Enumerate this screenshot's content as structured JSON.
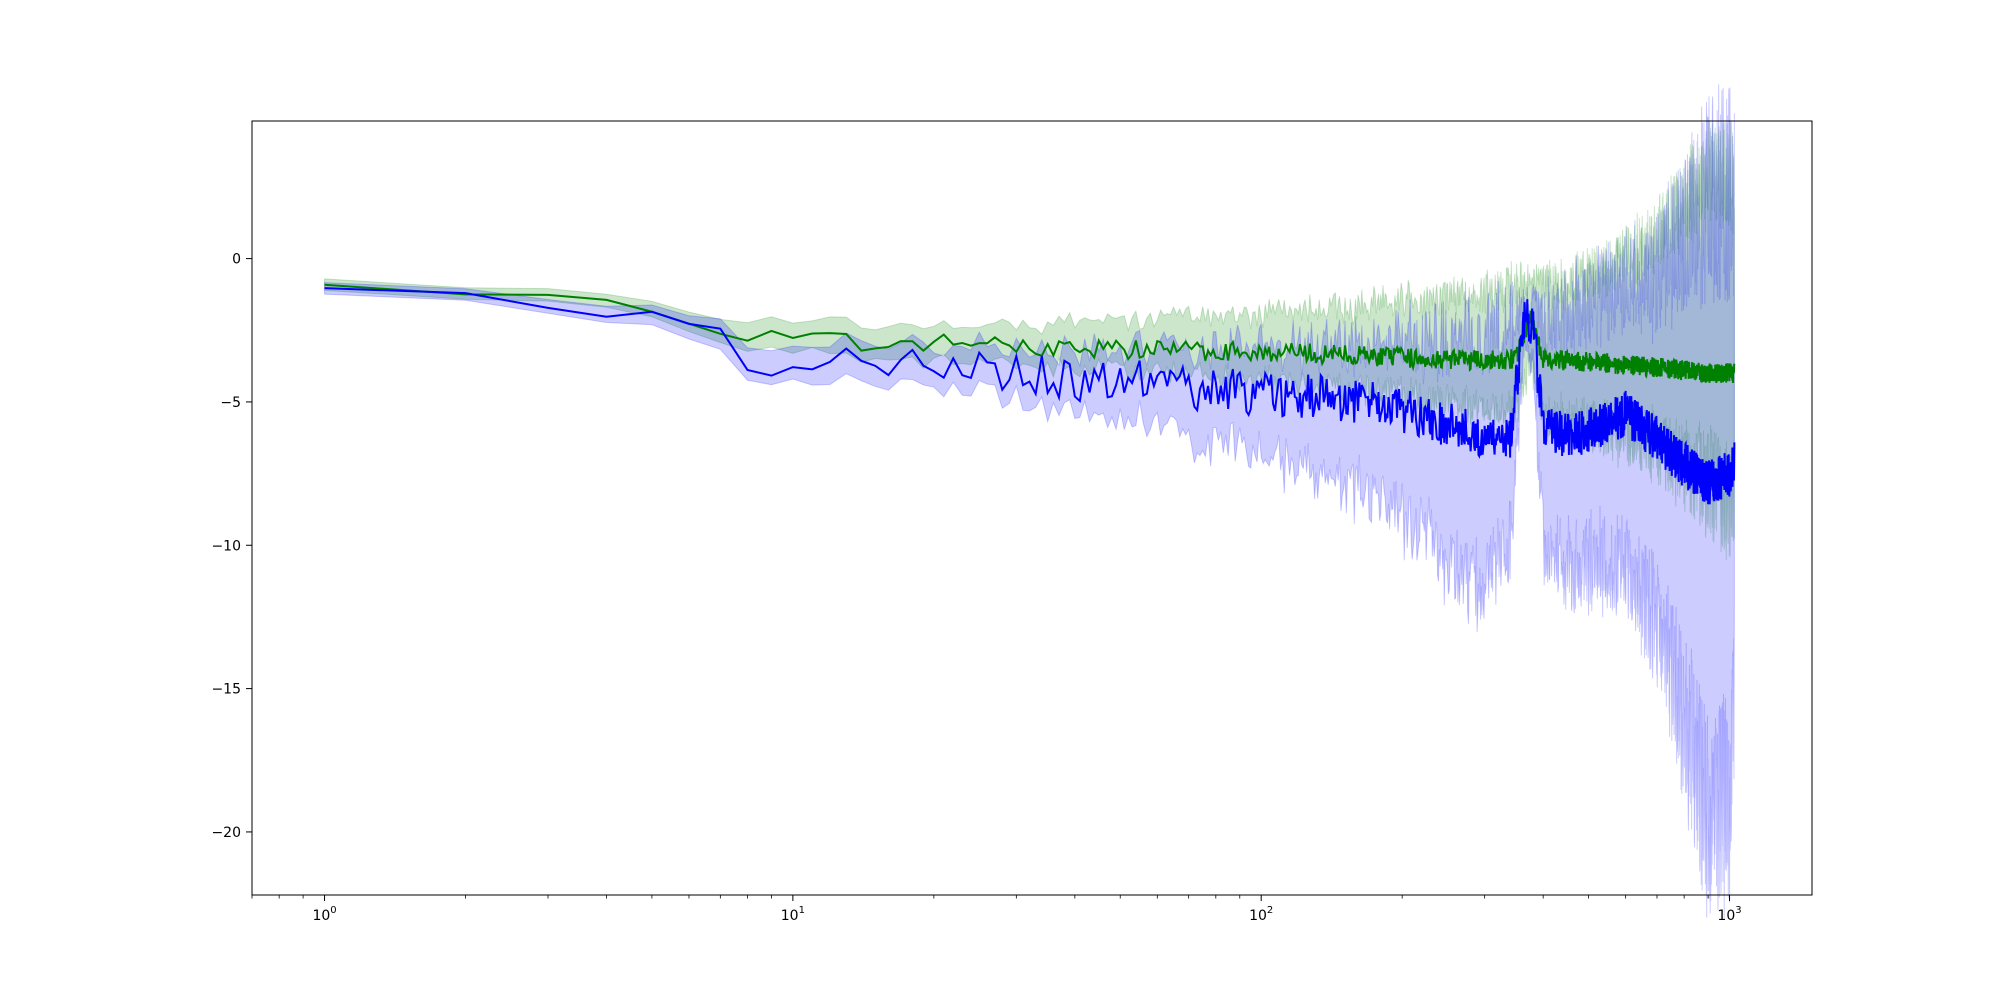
{
  "chart_data": {
    "type": "line",
    "title": "",
    "xlabel": "",
    "ylabel": "",
    "xscale": "log",
    "xlim": [
      0.7,
      1500
    ],
    "ylim": [
      -22.2,
      4.8
    ],
    "grid": false,
    "legend": "none",
    "x_ticks": [
      {
        "base": "10",
        "exp": "0",
        "value": 1
      },
      {
        "base": "10",
        "exp": "1",
        "value": 10
      },
      {
        "base": "10",
        "exp": "2",
        "value": 100
      },
      {
        "base": "10",
        "exp": "3",
        "value": 1000
      }
    ],
    "y_ticks": [
      {
        "label": "0",
        "value": 0
      },
      {
        "label": "−5",
        "value": -5
      },
      {
        "label": "−10",
        "value": -10
      },
      {
        "label": "−15",
        "value": -15
      },
      {
        "label": "−20",
        "value": -20
      }
    ],
    "series": [
      {
        "color": "#008000",
        "band_color": "#008000",
        "x": [
          1,
          2,
          3,
          4,
          5,
          6,
          7,
          8,
          10,
          12,
          15,
          20,
          25,
          30,
          40,
          50,
          70,
          100,
          150,
          200,
          250,
          300,
          350,
          375,
          400,
          500,
          600,
          700,
          800,
          900,
          1000,
          1024
        ],
        "y": [
          -0.9,
          -1.15,
          -1.35,
          -1.55,
          -1.75,
          -2.1,
          -2.5,
          -2.7,
          -2.85,
          -2.9,
          -2.95,
          -2.95,
          -3.0,
          -3.05,
          -3.1,
          -3.15,
          -3.2,
          -3.25,
          -3.35,
          -3.45,
          -3.5,
          -3.55,
          -3.5,
          -2.0,
          -3.5,
          -3.6,
          -3.7,
          -3.8,
          -3.9,
          -4.0,
          -4.0,
          -4.0
        ],
        "upper": [
          -0.7,
          -0.95,
          -1.1,
          -1.3,
          -1.45,
          -1.75,
          -2.0,
          -2.2,
          -2.3,
          -2.3,
          -2.3,
          -2.3,
          -2.3,
          -2.3,
          -2.2,
          -2.1,
          -2.0,
          -1.9,
          -1.7,
          -1.5,
          -1.3,
          -1.2,
          -1.0,
          -0.8,
          -1.0,
          -0.6,
          0.0,
          0.8,
          2.0,
          3.0,
          3.0,
          2.5
        ],
        "lower": [
          -1.1,
          -1.35,
          -1.55,
          -1.75,
          -2.0,
          -2.4,
          -2.9,
          -3.1,
          -3.3,
          -3.4,
          -3.5,
          -3.55,
          -3.6,
          -3.7,
          -3.8,
          -3.9,
          -4.0,
          -4.2,
          -4.5,
          -4.8,
          -5.0,
          -5.2,
          -5.4,
          -3.5,
          -5.5,
          -5.8,
          -6.2,
          -6.6,
          -7.2,
          -7.8,
          -8.5,
          -8.5
        ],
        "noise": 0.35
      },
      {
        "color": "#0000ff",
        "band_color": "#0000ff",
        "x": [
          1,
          2,
          3,
          4,
          5,
          6,
          7,
          8,
          9,
          10,
          12,
          15,
          20,
          25,
          30,
          40,
          50,
          70,
          100,
          150,
          200,
          250,
          300,
          340,
          365,
          380,
          400,
          450,
          500,
          600,
          700,
          800,
          900,
          1000,
          1024
        ],
        "y": [
          -1.05,
          -1.35,
          -1.6,
          -1.85,
          -2.15,
          -2.6,
          -3.0,
          -3.3,
          -3.5,
          -3.55,
          -3.65,
          -3.7,
          -3.85,
          -3.8,
          -3.9,
          -4.2,
          -4.3,
          -4.5,
          -4.7,
          -4.9,
          -5.3,
          -5.8,
          -6.3,
          -6.3,
          -2.0,
          -2.3,
          -5.8,
          -6.2,
          -6.0,
          -5.4,
          -6.3,
          -7.2,
          -7.8,
          -7.5,
          -7.0
        ],
        "upper": [
          -0.85,
          -1.15,
          -1.35,
          -1.55,
          -1.8,
          -2.15,
          -2.5,
          -2.75,
          -2.9,
          -2.95,
          -3.0,
          -3.05,
          -3.1,
          -3.05,
          -3.05,
          -3.15,
          -3.15,
          -3.15,
          -3.1,
          -3.05,
          -3.0,
          -2.7,
          -2.4,
          -2.2,
          -1.6,
          -1.5,
          -2.3,
          -2.0,
          -1.5,
          -1.0,
          -0.5,
          0.5,
          2.0,
          2.5,
          2.0
        ],
        "lower": [
          -1.25,
          -1.55,
          -1.85,
          -2.15,
          -2.5,
          -3.05,
          -3.5,
          -3.85,
          -4.1,
          -4.15,
          -4.3,
          -4.4,
          -4.6,
          -4.6,
          -4.8,
          -5.3,
          -5.6,
          -6.3,
          -6.8,
          -7.8,
          -9.0,
          -10.5,
          -11.5,
          -10.0,
          -3.0,
          -3.5,
          -10.0,
          -10.8,
          -10.5,
          -11.0,
          -12.5,
          -16.0,
          -19.5,
          -19.0,
          -15.0
        ],
        "noise": 0.8
      }
    ]
  }
}
